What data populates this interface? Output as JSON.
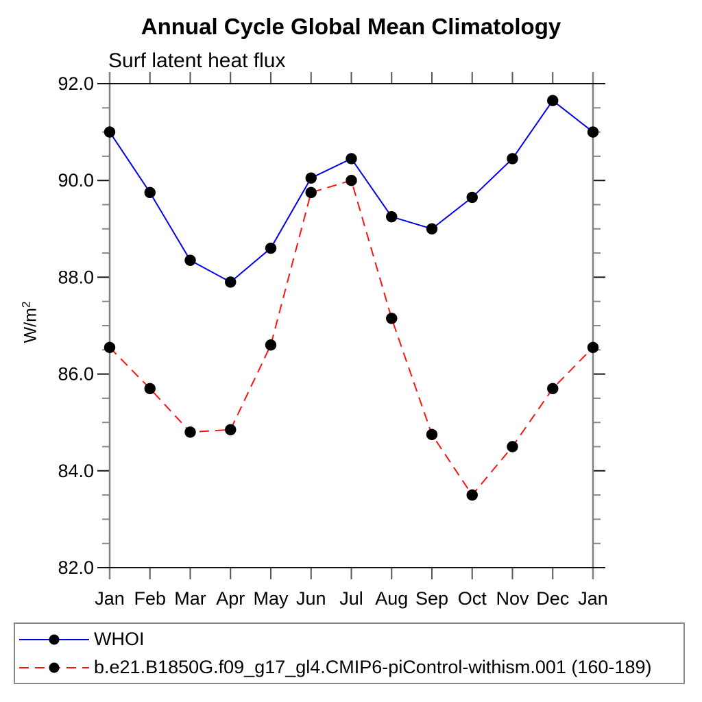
{
  "header": {
    "title": "Annual Cycle Global Mean Climatology",
    "subtitle": "Surf latent heat flux"
  },
  "axis": {
    "ylabel_base": "W/m",
    "ylabel_sup": "2"
  },
  "colors": {
    "series1": "#0000ee",
    "series2": "#ff1111",
    "marker": "#000000",
    "frame": "#111111",
    "spine": "#808080",
    "minor_tick": "#888888",
    "month_tick": "#555555",
    "legend_border": "#888888"
  },
  "chart_data": {
    "type": "line",
    "title": "Annual Cycle Global Mean Climatology",
    "subtitle": "Surf latent heat flux",
    "ylabel": "W/m^2",
    "xlabel": "",
    "categories": [
      "Jan",
      "Feb",
      "Mar",
      "Apr",
      "May",
      "Jun",
      "Jul",
      "Aug",
      "Sep",
      "Oct",
      "Nov",
      "Dec",
      "Jan"
    ],
    "series": [
      {
        "name": "WHOI",
        "color": "#0000ee",
        "line_style": "solid",
        "marker": "circle",
        "marker_color": "#000000",
        "values": [
          91.0,
          89.75,
          88.35,
          87.9,
          88.6,
          90.05,
          90.45,
          89.25,
          89.0,
          89.65,
          90.45,
          91.65,
          91.0
        ]
      },
      {
        "name": "b.e21.B1850G.f09_g17_gl4.CMIP6-piControl-withism.001 (160-189)",
        "color": "#ff1111",
        "line_style": "dashed",
        "marker": "circle",
        "marker_color": "#000000",
        "values": [
          86.55,
          85.7,
          84.8,
          84.85,
          86.6,
          89.75,
          90.0,
          87.15,
          84.75,
          83.5,
          84.5,
          85.7,
          86.55
        ]
      }
    ],
    "ylim": [
      82.0,
      92.0
    ],
    "ytick_major_step": 2.0,
    "ytick_minor_step": 0.5,
    "ytick_label_decimals": 1,
    "grid": false,
    "legend_position": "bottom-box"
  }
}
